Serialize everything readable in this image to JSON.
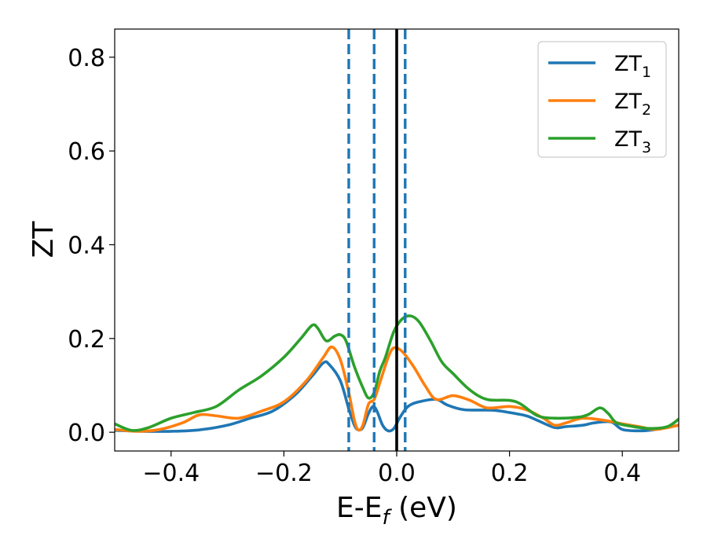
{
  "chart_data": {
    "type": "line",
    "title": "",
    "xlabel": "E-E_f (eV)",
    "xlabel_parts": {
      "main": "E-E",
      "sub": "f",
      "rest": " (eV)"
    },
    "ylabel": "ZT",
    "xlim": [
      -0.5,
      0.5
    ],
    "ylim": [
      -0.04,
      0.86
    ],
    "xticks": [
      {
        "value": -0.4,
        "label": "−0.4"
      },
      {
        "value": -0.2,
        "label": "−0.2"
      },
      {
        "value": 0.0,
        "label": "0.0"
      },
      {
        "value": 0.2,
        "label": "0.2"
      },
      {
        "value": 0.4,
        "label": "0.4"
      }
    ],
    "yticks": [
      {
        "value": 0.0,
        "label": "0.0"
      },
      {
        "value": 0.2,
        "label": "0.2"
      },
      {
        "value": 0.4,
        "label": "0.4"
      },
      {
        "value": 0.6,
        "label": "0.6"
      },
      {
        "value": 0.8,
        "label": "0.8"
      }
    ],
    "grid": false,
    "legend_position": "top-right",
    "vertical_lines": [
      {
        "x": -0.085,
        "style": "dashed",
        "color": "#1f77b4"
      },
      {
        "x": -0.04,
        "style": "dashed",
        "color": "#1f77b4"
      },
      {
        "x": 0.0,
        "style": "solid",
        "color": "#000000"
      },
      {
        "x": 0.015,
        "style": "dashed",
        "color": "#1f77b4"
      }
    ],
    "series": [
      {
        "name": "ZT_1",
        "legend_main": "ZT",
        "legend_sub": "1",
        "color": "#1f77b4",
        "points": [
          [
            -0.5,
            0.004
          ],
          [
            -0.45,
            0.002
          ],
          [
            -0.4,
            0.002
          ],
          [
            -0.35,
            0.005
          ],
          [
            -0.3,
            0.015
          ],
          [
            -0.26,
            0.03
          ],
          [
            -0.22,
            0.045
          ],
          [
            -0.18,
            0.08
          ],
          [
            -0.15,
            0.12
          ],
          [
            -0.13,
            0.148
          ],
          [
            -0.12,
            0.145
          ],
          [
            -0.1,
            0.11
          ],
          [
            -0.085,
            0.05
          ],
          [
            -0.075,
            0.015
          ],
          [
            -0.068,
            0.005
          ],
          [
            -0.06,
            0.01
          ],
          [
            -0.05,
            0.04
          ],
          [
            -0.042,
            0.055
          ],
          [
            -0.035,
            0.045
          ],
          [
            -0.025,
            0.015
          ],
          [
            -0.015,
            0.003
          ],
          [
            -0.005,
            0.008
          ],
          [
            0.005,
            0.03
          ],
          [
            0.02,
            0.055
          ],
          [
            0.04,
            0.065
          ],
          [
            0.07,
            0.07
          ],
          [
            0.09,
            0.058
          ],
          [
            0.12,
            0.048
          ],
          [
            0.17,
            0.047
          ],
          [
            0.2,
            0.042
          ],
          [
            0.23,
            0.035
          ],
          [
            0.25,
            0.025
          ],
          [
            0.28,
            0.01
          ],
          [
            0.3,
            0.012
          ],
          [
            0.33,
            0.015
          ],
          [
            0.35,
            0.02
          ],
          [
            0.38,
            0.022
          ],
          [
            0.4,
            0.006
          ],
          [
            0.43,
            0.003
          ],
          [
            0.46,
            0.006
          ],
          [
            0.5,
            0.015
          ]
        ]
      },
      {
        "name": "ZT_2",
        "legend_main": "ZT",
        "legend_sub": "2",
        "color": "#ff7f0e",
        "points": [
          [
            -0.5,
            0.006
          ],
          [
            -0.46,
            0.002
          ],
          [
            -0.42,
            0.006
          ],
          [
            -0.38,
            0.02
          ],
          [
            -0.35,
            0.037
          ],
          [
            -0.32,
            0.035
          ],
          [
            -0.28,
            0.03
          ],
          [
            -0.24,
            0.045
          ],
          [
            -0.2,
            0.065
          ],
          [
            -0.16,
            0.11
          ],
          [
            -0.13,
            0.16
          ],
          [
            -0.115,
            0.182
          ],
          [
            -0.1,
            0.155
          ],
          [
            -0.085,
            0.085
          ],
          [
            -0.075,
            0.025
          ],
          [
            -0.068,
            0.005
          ],
          [
            -0.06,
            0.015
          ],
          [
            -0.05,
            0.06
          ],
          [
            -0.04,
            0.07
          ],
          [
            -0.03,
            0.105
          ],
          [
            -0.015,
            0.16
          ],
          [
            -0.005,
            0.18
          ],
          [
            0.01,
            0.172
          ],
          [
            0.03,
            0.14
          ],
          [
            0.05,
            0.1
          ],
          [
            0.07,
            0.07
          ],
          [
            0.1,
            0.078
          ],
          [
            0.13,
            0.068
          ],
          [
            0.16,
            0.052
          ],
          [
            0.2,
            0.055
          ],
          [
            0.23,
            0.048
          ],
          [
            0.26,
            0.03
          ],
          [
            0.28,
            0.015
          ],
          [
            0.3,
            0.02
          ],
          [
            0.33,
            0.03
          ],
          [
            0.37,
            0.025
          ],
          [
            0.4,
            0.018
          ],
          [
            0.43,
            0.012
          ],
          [
            0.46,
            0.006
          ],
          [
            0.5,
            0.015
          ]
        ]
      },
      {
        "name": "ZT_3",
        "legend_main": "ZT",
        "legend_sub": "3",
        "color": "#2ca02c",
        "points": [
          [
            -0.5,
            0.018
          ],
          [
            -0.47,
            0.004
          ],
          [
            -0.44,
            0.01
          ],
          [
            -0.4,
            0.03
          ],
          [
            -0.36,
            0.042
          ],
          [
            -0.32,
            0.055
          ],
          [
            -0.28,
            0.09
          ],
          [
            -0.24,
            0.12
          ],
          [
            -0.2,
            0.16
          ],
          [
            -0.17,
            0.2
          ],
          [
            -0.15,
            0.228
          ],
          [
            -0.14,
            0.222
          ],
          [
            -0.125,
            0.195
          ],
          [
            -0.11,
            0.205
          ],
          [
            -0.1,
            0.208
          ],
          [
            -0.09,
            0.195
          ],
          [
            -0.075,
            0.14
          ],
          [
            -0.06,
            0.095
          ],
          [
            -0.05,
            0.073
          ],
          [
            -0.04,
            0.085
          ],
          [
            -0.03,
            0.13
          ],
          [
            -0.02,
            0.16
          ],
          [
            -0.005,
            0.215
          ],
          [
            0.01,
            0.242
          ],
          [
            0.025,
            0.248
          ],
          [
            0.04,
            0.235
          ],
          [
            0.06,
            0.195
          ],
          [
            0.08,
            0.15
          ],
          [
            0.1,
            0.125
          ],
          [
            0.13,
            0.09
          ],
          [
            0.16,
            0.07
          ],
          [
            0.2,
            0.068
          ],
          [
            0.22,
            0.06
          ],
          [
            0.25,
            0.035
          ],
          [
            0.28,
            0.03
          ],
          [
            0.32,
            0.032
          ],
          [
            0.34,
            0.038
          ],
          [
            0.36,
            0.052
          ],
          [
            0.375,
            0.04
          ],
          [
            0.39,
            0.02
          ],
          [
            0.42,
            0.012
          ],
          [
            0.45,
            0.008
          ],
          [
            0.48,
            0.012
          ],
          [
            0.5,
            0.028
          ]
        ]
      }
    ]
  }
}
